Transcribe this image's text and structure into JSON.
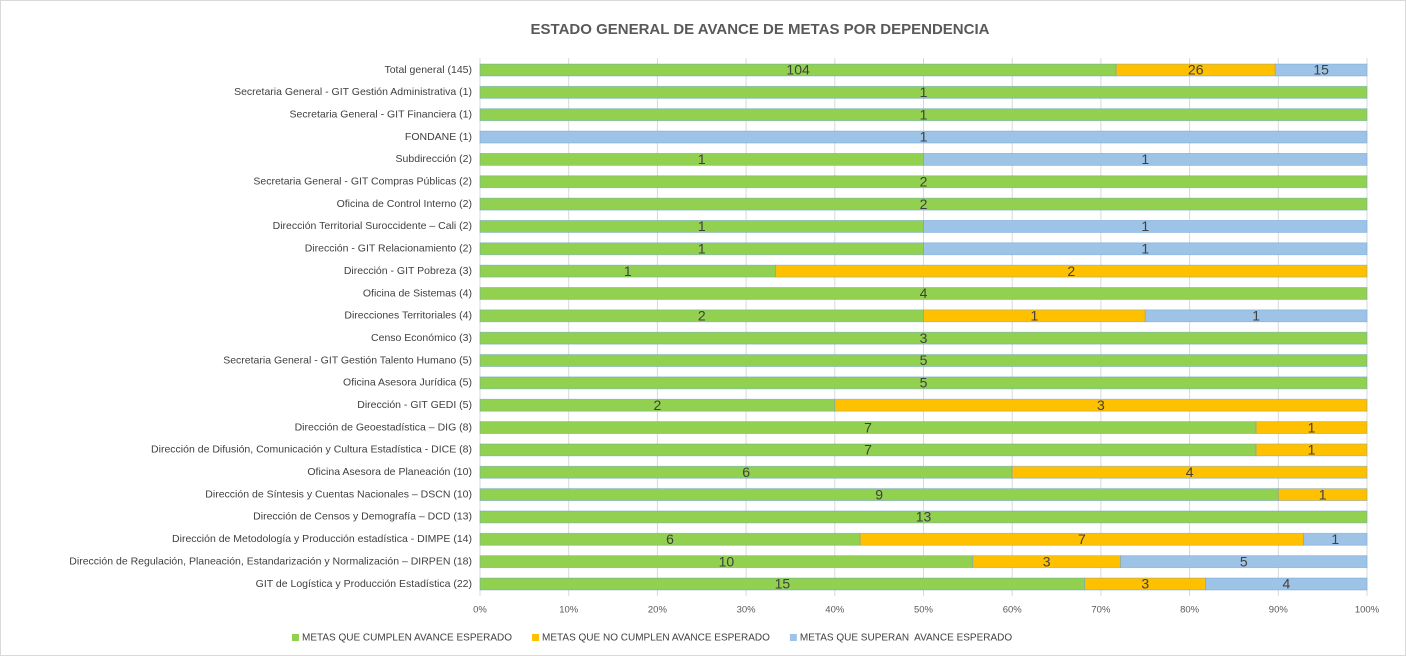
{
  "chart_data": {
    "type": "bar",
    "orientation": "horizontal",
    "stack": "percent",
    "title": "ESTADO GENERAL DE AVANCE DE METAS POR DEPENDENCIA",
    "categories": [
      "Total general (145)",
      "Secretaria General - GIT Gestión Administrativa (1)",
      "Secretaria General - GIT Financiera (1)",
      "FONDANE (1)",
      "Subdirección (2)",
      "Secretaria General - GIT Compras Públicas (2)",
      "Oficina de Control Interno (2)",
      "Dirección Territorial Suroccidente – Cali (2)",
      "Dirección - GIT Relacionamiento (2)",
      "Dirección - GIT Pobreza (3)",
      "Oficina de Sistemas (4)",
      "Direcciones Territoriales (4)",
      "Censo Económico (3)",
      "Secretaria General - GIT Gestión Talento Humano (5)",
      "Oficina Asesora Jurídica (5)",
      "Dirección - GIT GEDI (5)",
      "Dirección de Geoestadística – DIG (8)",
      "Dirección de Difusión, Comunicación y Cultura Estadística - DICE (8)",
      "Oficina Asesora de Planeación (10)",
      "Dirección de Síntesis y Cuentas Nacionales – DSCN (10)",
      "Dirección de Censos y Demografía – DCD (13)",
      "Dirección de Metodología y Producción estadística - DIMPE (14)",
      "Dirección de Regulación, Planeación, Estandarización y Normalización – DIRPEN (18)",
      "GIT de Logística y Producción Estadística (22)"
    ],
    "series": [
      {
        "name": "METAS QUE CUMPLEN AVANCE ESPERADO",
        "color": "#92d050",
        "values": [
          104,
          1,
          1,
          null,
          1,
          2,
          2,
          1,
          1,
          1,
          4,
          2,
          3,
          5,
          5,
          2,
          7,
          7,
          6,
          9,
          13,
          6,
          10,
          15
        ]
      },
      {
        "name": "METAS QUE NO CUMPLEN AVANCE ESPERADO",
        "color": "#ffc000",
        "values": [
          26,
          null,
          null,
          null,
          null,
          null,
          null,
          null,
          null,
          2,
          null,
          1,
          null,
          null,
          null,
          3,
          1,
          1,
          4,
          1,
          null,
          7,
          3,
          3
        ]
      },
      {
        "name": "METAS QUE SUPERAN  AVANCE ESPERADO",
        "color": "#9dc3e6",
        "values": [
          15,
          null,
          null,
          1,
          1,
          null,
          null,
          1,
          1,
          null,
          null,
          1,
          null,
          null,
          null,
          null,
          null,
          null,
          null,
          null,
          null,
          1,
          5,
          4
        ]
      }
    ],
    "xlim": [
      0,
      100
    ],
    "xticks": [
      {
        "value": 0,
        "label": "0%"
      },
      {
        "value": 10,
        "label": "10%"
      },
      {
        "value": 20,
        "label": "20%"
      },
      {
        "value": 30,
        "label": "30%"
      },
      {
        "value": 40,
        "label": "40%"
      },
      {
        "value": 50,
        "label": "50%"
      },
      {
        "value": 60,
        "label": "60%"
      },
      {
        "value": 70,
        "label": "70%"
      },
      {
        "value": 80,
        "label": "80%"
      },
      {
        "value": 90,
        "label": "90%"
      },
      {
        "value": 100,
        "label": "100%"
      }
    ],
    "grid": true,
    "legend": "bottom"
  }
}
